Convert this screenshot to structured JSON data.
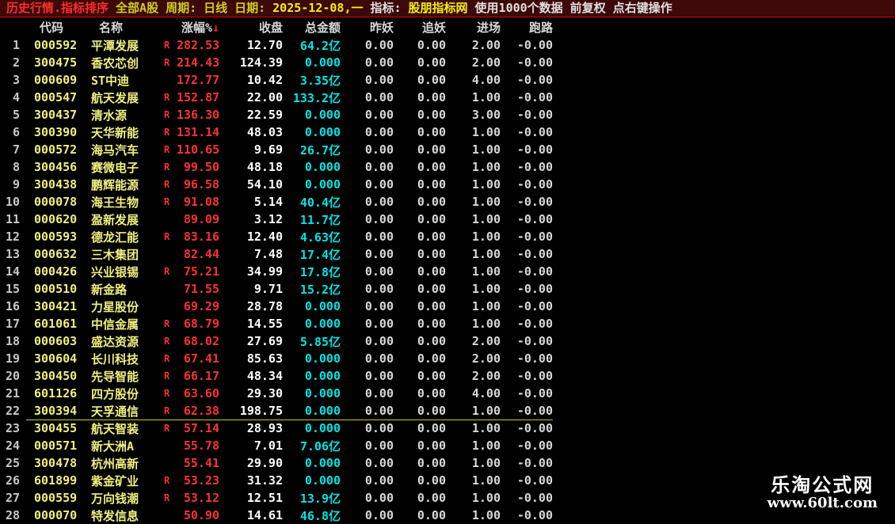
{
  "top_bar": {
    "segments": [
      {
        "text": "历史行情.指标排序",
        "color": "#ff2d2d"
      },
      {
        "text": "全部A股",
        "color": "#cfcf1f"
      },
      {
        "text": "周期:",
        "color": "#cfcf1f"
      },
      {
        "text": "日线",
        "color": "#cfcf1f"
      },
      {
        "text": "日期:",
        "color": "#cfcf1f"
      },
      {
        "text": "2025-12-08,一",
        "color": "#f2f20a"
      },
      {
        "text": "指标:",
        "color": "#e0e0e0"
      },
      {
        "text": "股朋指标网",
        "color": "#f2f20a"
      },
      {
        "text": "使用1000个数据",
        "color": "#e0e0e0"
      },
      {
        "text": "前复权",
        "color": "#e0e0e0"
      },
      {
        "text": "点右键操作",
        "color": "#e0e0e0"
      }
    ]
  },
  "table": {
    "sort_arrow": "↓",
    "columns": [
      {
        "key": "num",
        "label": ""
      },
      {
        "key": "code",
        "label": "代码"
      },
      {
        "key": "name",
        "label": "名称"
      },
      {
        "key": "r",
        "label": ""
      },
      {
        "key": "change",
        "label": "涨幅%"
      },
      {
        "key": "close",
        "label": "收盘"
      },
      {
        "key": "amount",
        "label": "总金额"
      },
      {
        "key": "zuoyao",
        "label": "昨妖"
      },
      {
        "key": "zhuiyao",
        "label": "追妖"
      },
      {
        "key": "jinchang",
        "label": "进场"
      },
      {
        "key": "paolu",
        "label": "跑路"
      }
    ],
    "rows": [
      {
        "num": "1",
        "code": "000592",
        "name": "平潭发展",
        "r": "R",
        "change": "282.53",
        "close": "12.70",
        "amount": "64.2亿",
        "zuoyao": "0.00",
        "zhuiyao": "0.00",
        "jinchang": "2.00",
        "paolu": "-0.00"
      },
      {
        "num": "2",
        "code": "300475",
        "name": "香农芯创",
        "r": "R",
        "change": "214.43",
        "close": "124.39",
        "amount": "0.000",
        "zuoyao": "0.00",
        "zhuiyao": "0.00",
        "jinchang": "2.00",
        "paolu": "-0.00"
      },
      {
        "num": "3",
        "code": "000609",
        "name": "ST中迪",
        "r": "",
        "change": "172.77",
        "close": "10.42",
        "amount": "3.35亿",
        "zuoyao": "0.00",
        "zhuiyao": "0.00",
        "jinchang": "4.00",
        "paolu": "-0.00"
      },
      {
        "num": "4",
        "code": "000547",
        "name": "航天发展",
        "r": "R",
        "change": "152.87",
        "close": "22.00",
        "amount": "133.2亿",
        "zuoyao": "0.00",
        "zhuiyao": "0.00",
        "jinchang": "1.00",
        "paolu": "-0.00"
      },
      {
        "num": "5",
        "code": "300437",
        "name": "清水源",
        "r": "R",
        "change": "136.30",
        "close": "22.59",
        "amount": "0.000",
        "zuoyao": "0.00",
        "zhuiyao": "0.00",
        "jinchang": "3.00",
        "paolu": "-0.00"
      },
      {
        "num": "6",
        "code": "300390",
        "name": "天华新能",
        "r": "R",
        "change": "131.14",
        "close": "48.03",
        "amount": "0.000",
        "zuoyao": "0.00",
        "zhuiyao": "0.00",
        "jinchang": "1.00",
        "paolu": "-0.00"
      },
      {
        "num": "7",
        "code": "000572",
        "name": "海马汽车",
        "r": "R",
        "change": "110.65",
        "close": "9.69",
        "amount": "26.7亿",
        "zuoyao": "0.00",
        "zhuiyao": "0.00",
        "jinchang": "1.00",
        "paolu": "-0.00"
      },
      {
        "num": "8",
        "code": "300456",
        "name": "赛微电子",
        "r": "R",
        "change": "99.50",
        "close": "48.18",
        "amount": "0.000",
        "zuoyao": "0.00",
        "zhuiyao": "0.00",
        "jinchang": "1.00",
        "paolu": "-0.00"
      },
      {
        "num": "9",
        "code": "300438",
        "name": "鹏辉能源",
        "r": "R",
        "change": "96.58",
        "close": "54.10",
        "amount": "0.000",
        "zuoyao": "0.00",
        "zhuiyao": "0.00",
        "jinchang": "1.00",
        "paolu": "-0.00"
      },
      {
        "num": "10",
        "code": "000078",
        "name": "海王生物",
        "r": "R",
        "change": "91.08",
        "close": "5.14",
        "amount": "40.4亿",
        "zuoyao": "0.00",
        "zhuiyao": "0.00",
        "jinchang": "1.00",
        "paolu": "-0.00"
      },
      {
        "num": "11",
        "code": "000620",
        "name": "盈新发展",
        "r": "",
        "change": "89.09",
        "close": "3.12",
        "amount": "11.7亿",
        "zuoyao": "0.00",
        "zhuiyao": "0.00",
        "jinchang": "1.00",
        "paolu": "-0.00"
      },
      {
        "num": "12",
        "code": "000593",
        "name": "德龙汇能",
        "r": "R",
        "change": "83.16",
        "close": "12.40",
        "amount": "4.63亿",
        "zuoyao": "0.00",
        "zhuiyao": "0.00",
        "jinchang": "1.00",
        "paolu": "-0.00"
      },
      {
        "num": "13",
        "code": "000632",
        "name": "三木集团",
        "r": "",
        "change": "82.44",
        "close": "7.48",
        "amount": "17.4亿",
        "zuoyao": "0.00",
        "zhuiyao": "0.00",
        "jinchang": "1.00",
        "paolu": "-0.00"
      },
      {
        "num": "14",
        "code": "000426",
        "name": "兴业银锡",
        "r": "R",
        "change": "75.21",
        "close": "34.99",
        "amount": "17.8亿",
        "zuoyao": "0.00",
        "zhuiyao": "0.00",
        "jinchang": "1.00",
        "paolu": "-0.00"
      },
      {
        "num": "15",
        "code": "000510",
        "name": "新金路",
        "r": "",
        "change": "71.55",
        "close": "9.71",
        "amount": "15.2亿",
        "zuoyao": "0.00",
        "zhuiyao": "0.00",
        "jinchang": "1.00",
        "paolu": "-0.00"
      },
      {
        "num": "16",
        "code": "300421",
        "name": "力星股份",
        "r": "",
        "change": "69.29",
        "close": "28.78",
        "amount": "0.000",
        "zuoyao": "0.00",
        "zhuiyao": "0.00",
        "jinchang": "1.00",
        "paolu": "-0.00"
      },
      {
        "num": "17",
        "code": "601061",
        "name": "中信金属",
        "r": "R",
        "change": "68.79",
        "close": "14.55",
        "amount": "0.000",
        "zuoyao": "0.00",
        "zhuiyao": "0.00",
        "jinchang": "1.00",
        "paolu": "-0.00"
      },
      {
        "num": "18",
        "code": "000603",
        "name": "盛达资源",
        "r": "R",
        "change": "68.02",
        "close": "27.69",
        "amount": "5.85亿",
        "zuoyao": "0.00",
        "zhuiyao": "0.00",
        "jinchang": "2.00",
        "paolu": "-0.00"
      },
      {
        "num": "19",
        "code": "300604",
        "name": "长川科技",
        "r": "R",
        "change": "67.41",
        "close": "85.63",
        "amount": "0.000",
        "zuoyao": "0.00",
        "zhuiyao": "0.00",
        "jinchang": "2.00",
        "paolu": "-0.00"
      },
      {
        "num": "20",
        "code": "300450",
        "name": "先导智能",
        "r": "R",
        "change": "66.17",
        "close": "48.34",
        "amount": "0.000",
        "zuoyao": "0.00",
        "zhuiyao": "0.00",
        "jinchang": "2.00",
        "paolu": "-0.00"
      },
      {
        "num": "21",
        "code": "601126",
        "name": "四方股份",
        "r": "R",
        "change": "63.60",
        "close": "29.30",
        "amount": "0.000",
        "zuoyao": "0.00",
        "zhuiyao": "0.00",
        "jinchang": "4.00",
        "paolu": "-0.00"
      },
      {
        "num": "22",
        "code": "300394",
        "name": "天孚通信",
        "r": "R",
        "change": "62.38",
        "close": "198.75",
        "amount": "0.000",
        "zuoyao": "0.00",
        "zhuiyao": "0.00",
        "jinchang": "1.00",
        "paolu": "-0.00",
        "cursor": true
      },
      {
        "num": "23",
        "code": "300455",
        "name": "航天智装",
        "r": "R",
        "change": "57.14",
        "close": "28.93",
        "amount": "0.000",
        "zuoyao": "0.00",
        "zhuiyao": "0.00",
        "jinchang": "1.00",
        "paolu": "-0.00"
      },
      {
        "num": "24",
        "code": "000571",
        "name": "新大洲A",
        "r": "",
        "change": "55.78",
        "close": "7.01",
        "amount": "7.06亿",
        "zuoyao": "0.00",
        "zhuiyao": "0.00",
        "jinchang": "1.00",
        "paolu": "-0.00"
      },
      {
        "num": "25",
        "code": "300478",
        "name": "杭州高新",
        "r": "",
        "change": "55.41",
        "close": "29.90",
        "amount": "0.000",
        "zuoyao": "0.00",
        "zhuiyao": "0.00",
        "jinchang": "1.00",
        "paolu": "-0.00"
      },
      {
        "num": "26",
        "code": "601899",
        "name": "紫金矿业",
        "r": "R",
        "change": "53.23",
        "close": "31.32",
        "amount": "0.000",
        "zuoyao": "0.00",
        "zhuiyao": "0.00",
        "jinchang": "1.00",
        "paolu": "-0.00"
      },
      {
        "num": "27",
        "code": "000559",
        "name": "万向钱潮",
        "r": "R",
        "change": "53.12",
        "close": "12.51",
        "amount": "13.9亿",
        "zuoyao": "0.00",
        "zhuiyao": "0.00",
        "jinchang": "1.00",
        "paolu": "-0.00"
      },
      {
        "num": "28",
        "code": "000070",
        "name": "特发信息",
        "r": "",
        "change": "50.90",
        "close": "14.61",
        "amount": "46.8亿",
        "zuoyao": "0.00",
        "zhuiyao": "0.00",
        "jinchang": "1.00",
        "paolu": "-0.00"
      }
    ]
  },
  "watermark": {
    "line1": "乐淘公式网",
    "line2": "www.60lt.com"
  },
  "colors": {
    "background": "#000000",
    "topbar_background": "#3c0808",
    "topbar_divider": "#d40000",
    "title_red": "#ff2d2d",
    "label_yellow": "#cfcf1f",
    "bright_yellow": "#f2f20a",
    "code_yellow": "#f0ef7e",
    "change_red": "#fa3232",
    "close_white": "#ffffff",
    "amount_cyan": "#00e5e5",
    "plain_gray": "#d8d8d8",
    "cursor_line_yellow": "#cbcb00"
  }
}
